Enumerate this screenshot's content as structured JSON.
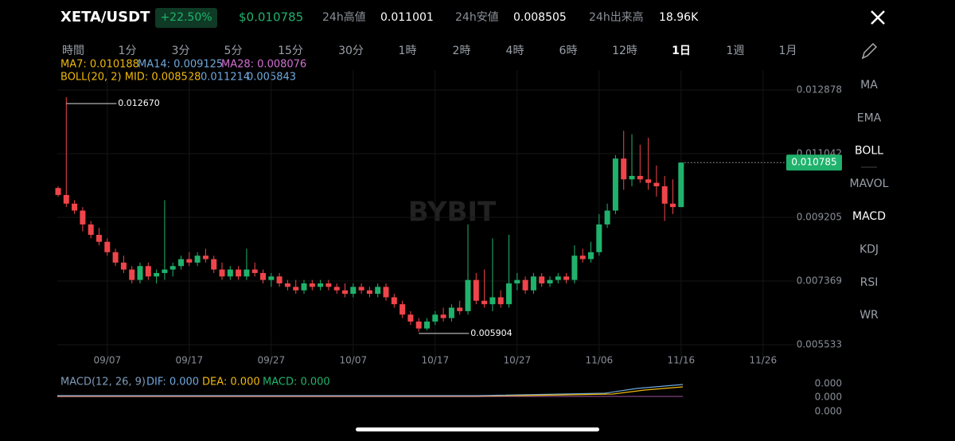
{
  "header": {
    "pair": "XETA/USDT",
    "change": "+22.50%",
    "price": "$0.010785",
    "stats": [
      {
        "label": "24h高値",
        "value": "0.011001"
      },
      {
        "label": "24h安値",
        "value": "0.008505"
      },
      {
        "label": "24h出来高",
        "value": "18.96K"
      }
    ]
  },
  "intervals": [
    "時間",
    "1分",
    "3分",
    "5分",
    "15分",
    "30分",
    "1時",
    "2時",
    "4時",
    "6時",
    "12時",
    "1日",
    "1週",
    "1月"
  ],
  "indicators": {
    "ma": [
      "MA7: 0.010188",
      "MA14: 0.009125",
      "MA28: 0.008076"
    ],
    "boll": [
      "BOLL(20, 2) MID: 0.008528",
      "0.011214",
      "0.005843"
    ]
  },
  "watermark": "BYBIT",
  "side_menu": [
    "MA",
    "EMA",
    "BOLL",
    "MAVOL",
    "MACD",
    "KDJ",
    "RSI",
    "WR"
  ],
  "macd": {
    "label": "MACD(12, 26, 9)",
    "dif": "DIF: 0.000",
    "dea": "DEA: 0.000",
    "macd": "MACD: 0.000",
    "axis": [
      "0.000",
      "0.000",
      "0.000"
    ]
  },
  "chart_data": {
    "type": "candlestick",
    "up_color": "#20b26c",
    "down_color": "#ef454a",
    "x": [
      0,
      1,
      2,
      3,
      4,
      5,
      6,
      7,
      8,
      9,
      10,
      11,
      12,
      13,
      14,
      15,
      16,
      17,
      18,
      19,
      20,
      21,
      22,
      23,
      24,
      25,
      26,
      27,
      28,
      29,
      30,
      31,
      32,
      33,
      34,
      35,
      36,
      37,
      38,
      39,
      40,
      41,
      42,
      43,
      44,
      45,
      46,
      47,
      48,
      49,
      50,
      51,
      52,
      53,
      54,
      55,
      56,
      57,
      58,
      59,
      60,
      61,
      62,
      63,
      64,
      65,
      66,
      67,
      68,
      69,
      70,
      71,
      72,
      73,
      74,
      75,
      76
    ],
    "open": [
      0.01005,
      0.00985,
      0.0096,
      0.0094,
      0.009,
      0.0087,
      0.0085,
      0.0082,
      0.0079,
      0.0077,
      0.0074,
      0.0078,
      0.0075,
      0.0076,
      0.0077,
      0.0078,
      0.008,
      0.0079,
      0.0081,
      0.008,
      0.0077,
      0.0075,
      0.0077,
      0.0075,
      0.0077,
      0.0076,
      0.0074,
      0.0075,
      0.0073,
      0.0072,
      0.0071,
      0.0073,
      0.0072,
      0.0073,
      0.0072,
      0.0071,
      0.007,
      0.0072,
      0.0071,
      0.007,
      0.0072,
      0.0069,
      0.0067,
      0.0064,
      0.0062,
      0.006,
      0.0062,
      0.0064,
      0.0063,
      0.0066,
      0.0065,
      0.0074,
      0.0068,
      0.0067,
      0.0069,
      0.0067,
      0.0073,
      0.0074,
      0.0071,
      0.0075,
      0.0073,
      0.0074,
      0.0075,
      0.0074,
      0.0081,
      0.008,
      0.0082,
      0.009,
      0.0094,
      0.0109,
      0.0103,
      0.0104,
      0.0103,
      0.0102,
      0.0101,
      0.0096,
      0.0095
    ],
    "high": [
      0.0101,
      0.01267,
      0.0097,
      0.0095,
      0.0091,
      0.0089,
      0.0086,
      0.0083,
      0.0081,
      0.0078,
      0.0079,
      0.0079,
      0.0077,
      0.0097,
      0.0079,
      0.0081,
      0.0082,
      0.0082,
      0.0083,
      0.0081,
      0.0079,
      0.0078,
      0.0078,
      0.0083,
      0.0079,
      0.0077,
      0.0076,
      0.0076,
      0.0074,
      0.0074,
      0.0074,
      0.0074,
      0.0074,
      0.0074,
      0.0073,
      0.0073,
      0.0073,
      0.0073,
      0.0072,
      0.0073,
      0.0073,
      0.007,
      0.0068,
      0.0065,
      0.0063,
      0.0063,
      0.0065,
      0.0066,
      0.0067,
      0.0068,
      0.009,
      0.0076,
      0.0077,
      0.0086,
      0.0071,
      0.0087,
      0.0076,
      0.0075,
      0.0076,
      0.0076,
      0.0075,
      0.0076,
      0.0076,
      0.0084,
      0.0083,
      0.0085,
      0.0093,
      0.0096,
      0.011,
      0.0117,
      0.0116,
      0.0113,
      0.0115,
      0.0107,
      0.0104,
      0.0103,
      0.010785
    ],
    "low": [
      0.0098,
      0.0095,
      0.0093,
      0.0088,
      0.0086,
      0.0084,
      0.0081,
      0.0078,
      0.0076,
      0.0073,
      0.0073,
      0.0074,
      0.0073,
      0.0074,
      0.0075,
      0.0077,
      0.0078,
      0.0078,
      0.0079,
      0.0076,
      0.0074,
      0.0074,
      0.0074,
      0.0074,
      0.0075,
      0.0073,
      0.0072,
      0.0072,
      0.0071,
      0.007,
      0.007,
      0.0071,
      0.0071,
      0.0071,
      0.007,
      0.0069,
      0.0069,
      0.007,
      0.0069,
      0.0069,
      0.0068,
      0.0066,
      0.0063,
      0.0061,
      0.005904,
      0.00595,
      0.0061,
      0.0062,
      0.0062,
      0.0064,
      0.0064,
      0.0067,
      0.0066,
      0.0065,
      0.0066,
      0.0066,
      0.0071,
      0.007,
      0.007,
      0.0072,
      0.0072,
      0.0073,
      0.0073,
      0.0073,
      0.0079,
      0.0079,
      0.0081,
      0.0089,
      0.0093,
      0.01,
      0.0101,
      0.0102,
      0.01,
      0.0098,
      0.0091,
      0.0093,
      0.0095
    ],
    "close": [
      0.00985,
      0.0096,
      0.0094,
      0.009,
      0.0087,
      0.0085,
      0.0082,
      0.0079,
      0.0077,
      0.0074,
      0.0078,
      0.0075,
      0.0076,
      0.0077,
      0.0078,
      0.008,
      0.0079,
      0.0081,
      0.008,
      0.0077,
      0.0075,
      0.0077,
      0.0075,
      0.0077,
      0.0076,
      0.0074,
      0.0075,
      0.0073,
      0.0072,
      0.0071,
      0.0073,
      0.0072,
      0.0073,
      0.0072,
      0.0071,
      0.007,
      0.0072,
      0.0071,
      0.007,
      0.0072,
      0.0069,
      0.0067,
      0.0064,
      0.0062,
      0.006,
      0.0062,
      0.0064,
      0.0063,
      0.0066,
      0.0065,
      0.0074,
      0.0068,
      0.0067,
      0.0069,
      0.0067,
      0.0073,
      0.0074,
      0.0071,
      0.0075,
      0.0073,
      0.0074,
      0.0075,
      0.0074,
      0.0081,
      0.008,
      0.0082,
      0.009,
      0.0094,
      0.0109,
      0.0103,
      0.0104,
      0.0103,
      0.0102,
      0.0101,
      0.0096,
      0.0095,
      0.010785
    ],
    "xlim": [
      -0.5,
      90
    ],
    "ylim": [
      0.005028,
      0.013452
    ],
    "yticks": [
      0.012878,
      0.011042,
      0.009205,
      0.007369,
      0.005533
    ],
    "xticks": [
      {
        "value": 6,
        "label": "09/07"
      },
      {
        "value": 16,
        "label": "09/17"
      },
      {
        "value": 26,
        "label": "09/27"
      },
      {
        "value": 36,
        "label": "10/07"
      },
      {
        "value": 46,
        "label": "10/17"
      },
      {
        "value": 56,
        "label": "10/27"
      },
      {
        "value": 66,
        "label": "11/06"
      },
      {
        "value": 76,
        "label": "11/16"
      },
      {
        "value": 86,
        "label": "11/26"
      }
    ],
    "high_label": "0.012670",
    "low_label": "0.005904",
    "last_label": "0.010785",
    "grid": true
  }
}
